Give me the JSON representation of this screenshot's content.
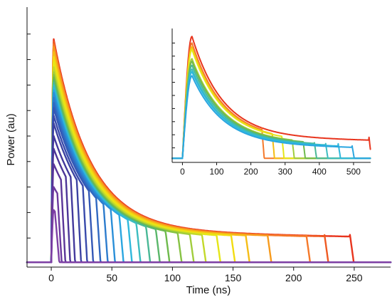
{
  "chart_data": [
    {
      "type": "line",
      "role": "main",
      "title": "",
      "xlabel": "Time (ns)",
      "ylabel": "Power (au)",
      "xlim": [
        -20,
        280
      ],
      "ylim": [
        0,
        1.0
      ],
      "xticks": [
        0,
        50,
        100,
        150,
        200,
        250
      ],
      "xtick_labels": [
        "0",
        "50",
        "100",
        "150",
        "200",
        "250"
      ],
      "yticks": [
        0.1,
        0.2,
        0.3,
        0.4,
        0.5,
        0.6,
        0.7,
        0.8,
        0.9
      ],
      "ytick_labels_visible": false,
      "grid": false,
      "legend": "none",
      "rise_start_ns": 0,
      "peak_time_ns": 2,
      "decay_tau_ns": 30,
      "tail_level": 0.13,
      "series": [
        {
          "color": "#e8351e",
          "peak": 0.88,
          "cutoff": 246
        },
        {
          "color": "#ef5a22",
          "peak": 0.87,
          "cutoff": 225
        },
        {
          "color": "#f5792a",
          "peak": 0.86,
          "cutoff": 210
        },
        {
          "color": "#f79b1d",
          "peak": 0.85,
          "cutoff": 178
        },
        {
          "color": "#f5bd16",
          "peak": 0.83,
          "cutoff": 160
        },
        {
          "color": "#f2dc10",
          "peak": 0.81,
          "cutoff": 148
        },
        {
          "color": "#e5e618",
          "peak": 0.79,
          "cutoff": 136
        },
        {
          "color": "#c3d92a",
          "peak": 0.77,
          "cutoff": 124
        },
        {
          "color": "#a1cd3c",
          "peak": 0.75,
          "cutoff": 114
        },
        {
          "color": "#86c244",
          "peak": 0.74,
          "cutoff": 104
        },
        {
          "color": "#6eba4c",
          "peak": 0.73,
          "cutoff": 94
        },
        {
          "color": "#5ab76a",
          "peak": 0.72,
          "cutoff": 86
        },
        {
          "color": "#49b896",
          "peak": 0.71,
          "cutoff": 78
        },
        {
          "color": "#3bbcc0",
          "peak": 0.7,
          "cutoff": 70
        },
        {
          "color": "#2fb8dc",
          "peak": 0.69,
          "cutoff": 63
        },
        {
          "color": "#2aa6e0",
          "peak": 0.68,
          "cutoff": 56
        },
        {
          "color": "#2a8fd8",
          "peak": 0.67,
          "cutoff": 49
        },
        {
          "color": "#2d7ccd",
          "peak": 0.65,
          "cutoff": 43
        },
        {
          "color": "#3068c1",
          "peak": 0.63,
          "cutoff": 37
        },
        {
          "color": "#3458b6",
          "peak": 0.61,
          "cutoff": 31
        },
        {
          "color": "#384aab",
          "peak": 0.58,
          "cutoff": 26
        },
        {
          "color": "#3c42a2",
          "peak": 0.55,
          "cutoff": 21
        },
        {
          "color": "#43399c",
          "peak": 0.5,
          "cutoff": 16
        },
        {
          "color": "#4c3597",
          "peak": 0.45,
          "cutoff": 12
        },
        {
          "color": "#5a3598",
          "peak": 0.39,
          "cutoff": 8
        },
        {
          "color": "#6b3a9e",
          "peak": 0.3,
          "cutoff": 5
        },
        {
          "color": "#7d3fa4",
          "peak": 0.21,
          "cutoff": 3
        }
      ]
    },
    {
      "type": "line",
      "role": "inset",
      "title": "",
      "xlabel": "",
      "ylabel": "",
      "xlim": [
        -30,
        550
      ],
      "ylim": [
        0,
        1.0
      ],
      "xticks": [
        0,
        100,
        200,
        300,
        400,
        500
      ],
      "xtick_labels": [
        "0",
        "100",
        "200",
        "300",
        "400",
        "500"
      ],
      "yticks": [
        0.1,
        0.2,
        0.3,
        0.4,
        0.5,
        0.6,
        0.7,
        0.8,
        0.9
      ],
      "ytick_labels_visible": false,
      "grid": false,
      "legend": "none",
      "rise_start_ns": 0,
      "peak_time_ns": 28,
      "decay_tau_ns": 90,
      "tail_level": 0.17,
      "final_level": 0.02,
      "series": [
        {
          "color": "#e8351e",
          "peak": 0.95,
          "cutoff": 545
        },
        {
          "color": "#f5792a",
          "peak": 0.9,
          "cutoff": 232
        },
        {
          "color": "#f5bd16",
          "peak": 0.87,
          "cutoff": 262
        },
        {
          "color": "#e5e618",
          "peak": 0.85,
          "cutoff": 290
        },
        {
          "color": "#a1cd3c",
          "peak": 0.78,
          "cutoff": 320
        },
        {
          "color": "#6eba4c",
          "peak": 0.76,
          "cutoff": 352
        },
        {
          "color": "#49b896",
          "peak": 0.73,
          "cutoff": 385
        },
        {
          "color": "#3bbcc0",
          "peak": 0.7,
          "cutoff": 418
        },
        {
          "color": "#2fb8dc",
          "peak": 0.68,
          "cutoff": 455
        },
        {
          "color": "#2aa6e0",
          "peak": 0.65,
          "cutoff": 495
        }
      ]
    }
  ]
}
